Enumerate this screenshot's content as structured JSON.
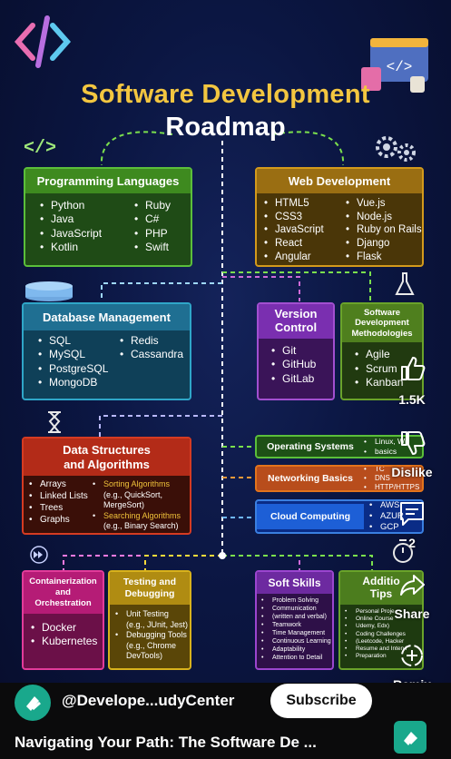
{
  "title_line1": "Software Development",
  "title_line2": "Roadmap",
  "code_glyph": "</>",
  "cards": {
    "prog": {
      "title": "Programming Languages",
      "col1": [
        "Python",
        "Java",
        "JavaScript",
        "Kotlin"
      ],
      "col2": [
        "Ruby",
        "C#",
        "PHP",
        "Swift"
      ]
    },
    "web": {
      "title": "Web Development",
      "col1": [
        "HTML5",
        "CSS3",
        "JavaScript",
        "React",
        "Angular"
      ],
      "col2": [
        "Vue.js",
        "Node.js",
        "Ruby on Rails",
        "Django",
        "Flask"
      ]
    },
    "db": {
      "title": "Database Management",
      "col1": [
        "SQL",
        "MySQL",
        "PostgreSQL",
        "MongoDB"
      ],
      "col2": [
        "Redis",
        "Cassandra"
      ]
    },
    "vc": {
      "title_l1": "Version",
      "title_l2": "Control",
      "items": [
        "Git",
        "GitHub",
        "GitLab"
      ]
    },
    "sdm": {
      "title": "Software Development Methodologies",
      "items": [
        "Agile",
        "Scrum",
        "Kanban"
      ]
    },
    "ds": {
      "title_l1": "Data Structures",
      "title_l2": "and Algorithms",
      "col1": [
        "Arrays",
        "Linked Lists",
        "Trees",
        "Graphs"
      ],
      "sort_l1": "Sorting Algorithms",
      "sort_l2": "(e.g., QuickSort,",
      "sort_l3": "MergeSort)",
      "search_l1": "Searching Algorithms",
      "search_l2": "(e.g., Binary Search)"
    },
    "os": {
      "title": "Operating Systems",
      "items": [
        "Linux, Wi",
        "basics"
      ]
    },
    "net": {
      "title": "Networking Basics",
      "items": [
        "TC",
        "DNS",
        "HTTP/HTTPS"
      ]
    },
    "cloud": {
      "title": "Cloud Computing",
      "items": [
        "AWS",
        "AZUR",
        "GCP"
      ]
    },
    "cont": {
      "title_l1": "Containerization",
      "title_l2": "and",
      "title_l3": "Orchestration",
      "items": [
        "Docker",
        "Kubernetes"
      ]
    },
    "test": {
      "title_l1": "Testing and",
      "title_l2": "Debugging",
      "unit_l1": "Unit Testing",
      "unit_l2": "(e.g., JUnit, Jest)",
      "dbg_l1": "Debugging Tools",
      "dbg_l2": "(e.g., Chrome",
      "dbg_l3": "DevTools)"
    },
    "soft": {
      "title": "Soft Skills",
      "items": [
        "Problem Solving",
        "Communication",
        "(written and verbal)",
        "Teamwork",
        "Time Management",
        "Continuous Learning",
        "Adaptability",
        "Attention to Detail"
      ]
    },
    "add": {
      "title_l1": "Additio",
      "title_l2": "Tips",
      "items": [
        "Personal Proje",
        "Online Course",
        "Udemy, Edx)",
        "Coding Challenges",
        "(Leetcode, Hacker",
        "Resume and Intervi",
        "Preparation"
      ]
    }
  },
  "actions": {
    "likes": "1.5K",
    "dislike": "Dislike",
    "comments": "2",
    "share": "Share",
    "remix": "Remix"
  },
  "channel": {
    "name": "@Develope...udyCenter",
    "subscribe": "Subscribe"
  },
  "video_title": "Navigating Your Path: The Software De ..."
}
